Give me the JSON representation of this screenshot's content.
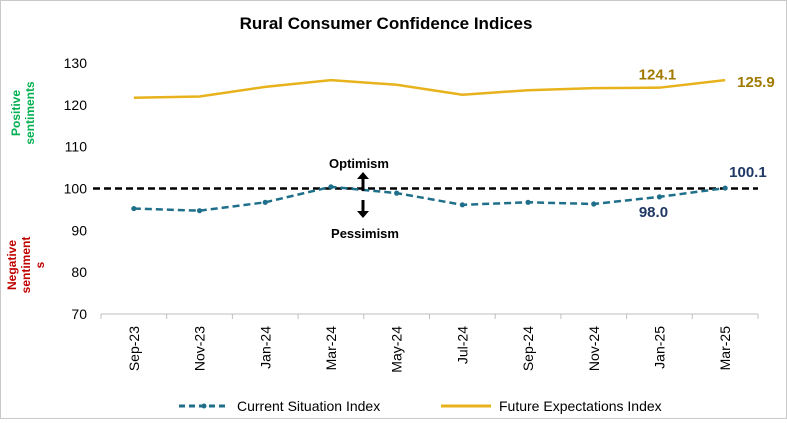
{
  "chart_data": {
    "type": "line",
    "title": "Rural Consumer Confidence Indices",
    "categories": [
      "Sep-23",
      "Nov-23",
      "Jan-24",
      "Mar-24",
      "May-24",
      "Jul-24",
      "Sep-24",
      "Nov-24",
      "Jan-25",
      "Mar-25"
    ],
    "ylim": [
      70,
      130
    ],
    "yticks": [
      70,
      80,
      90,
      100,
      110,
      120,
      130
    ],
    "grid": false,
    "reference_line": 100,
    "legend_position": "bottom",
    "series": [
      {
        "name": "Current Situation Index",
        "style": "dashed-markers",
        "color": "#1f6f8b",
        "values": [
          95.2,
          94.7,
          96.7,
          100.4,
          98.9,
          96.1,
          96.7,
          96.3,
          98.0,
          100.1
        ]
      },
      {
        "name": "Future Expectations Index",
        "style": "solid",
        "color": "#e8b21c",
        "values": [
          121.7,
          122.0,
          124.3,
          125.9,
          124.8,
          122.4,
          123.5,
          124.0,
          124.1,
          125.9
        ]
      }
    ],
    "data_labels": [
      {
        "series": 0,
        "index": 8,
        "text": "98.0",
        "color": "#1f3864"
      },
      {
        "series": 0,
        "index": 9,
        "text": "100.1",
        "color": "#1f3864"
      },
      {
        "series": 1,
        "index": 8,
        "text": "124.1",
        "color": "#a07a00"
      },
      {
        "series": 1,
        "index": 9,
        "text": "125.9",
        "color": "#a07a00"
      }
    ],
    "annotations": {
      "optimism": "Optimism",
      "pessimism": "Pessimism",
      "positive_sentiments": "Positive sentiments",
      "negative_sentiments": "Negative sentiment s"
    },
    "positive_color": "#00b050",
    "negative_color": "#c00000"
  }
}
